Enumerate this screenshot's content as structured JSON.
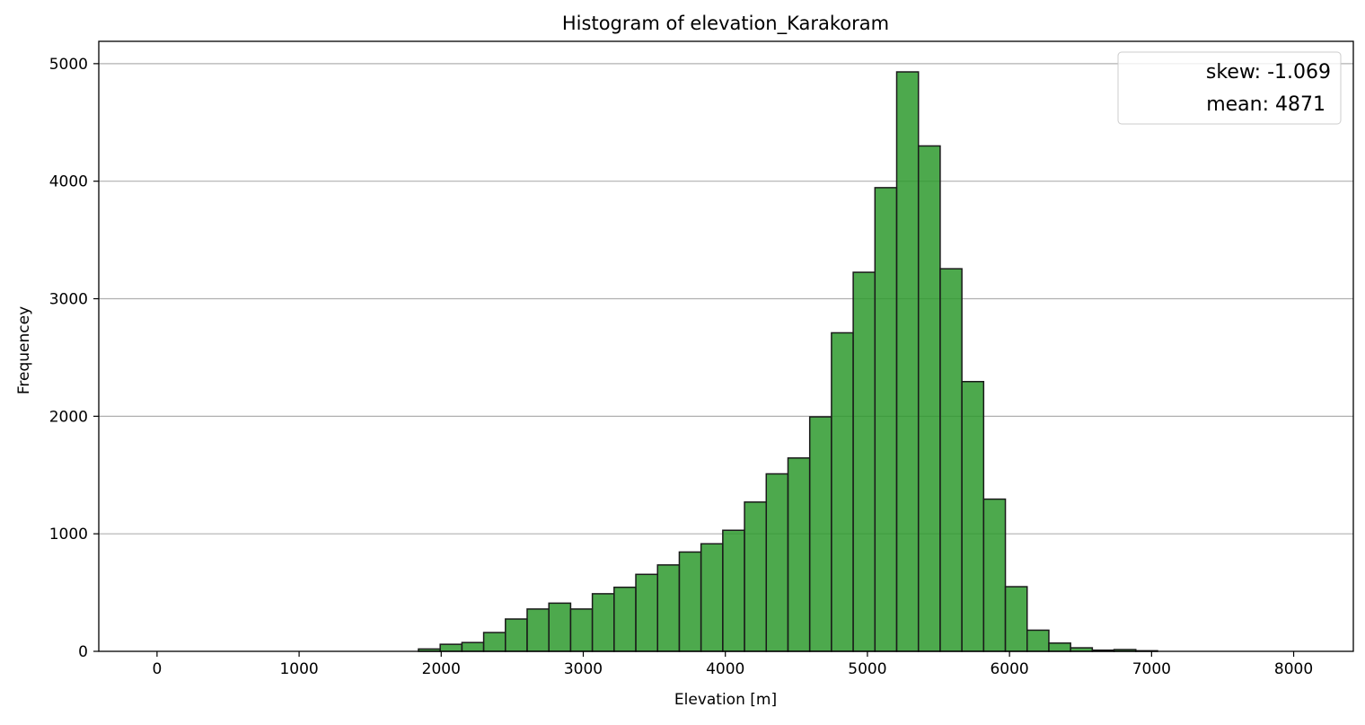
{
  "chart_data": {
    "type": "bar",
    "subtype": "histogram",
    "title": "Histogram of elevation_Karakoram",
    "xlabel": "Elevation [m]",
    "ylabel": "Frequencey",
    "xlim": [
      -410,
      8420
    ],
    "ylim": [
      0,
      5190
    ],
    "xticks": [
      0,
      1000,
      2000,
      3000,
      4000,
      5000,
      6000,
      7000,
      8000
    ],
    "yticks": [
      0,
      1000,
      2000,
      3000,
      4000,
      5000
    ],
    "grid": "horizontal",
    "bar_color": "#2e9a2e",
    "bar_opacity": 0.85,
    "edge_color": "#1a1a1a",
    "bin_start": 1840,
    "bin_width": 153,
    "values": [
      20,
      60,
      75,
      160,
      275,
      360,
      410,
      360,
      490,
      545,
      655,
      735,
      845,
      915,
      1030,
      1270,
      1510,
      1645,
      1995,
      2710,
      3225,
      3945,
      4930,
      4300,
      3255,
      2295,
      1295,
      550,
      180,
      70,
      30,
      10,
      15,
      5,
      0,
      0,
      0,
      0,
      0,
      0
    ],
    "legend": {
      "position": "top-right",
      "entries": [
        "skew: -1.069",
        "mean: 4871"
      ]
    }
  }
}
